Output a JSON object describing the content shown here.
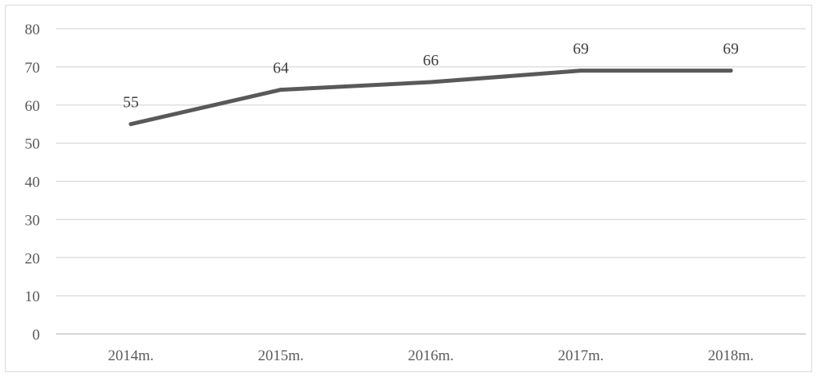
{
  "chart_data": {
    "type": "line",
    "categories": [
      "2014m.",
      "2015m.",
      "2016m.",
      "2017m.",
      "2018m."
    ],
    "series": [
      {
        "values": [
          55,
          64,
          66,
          69,
          69
        ],
        "color": "#595959"
      }
    ],
    "data_labels": [
      "55",
      "64",
      "66",
      "69",
      "69"
    ],
    "yticks": [
      0,
      10,
      20,
      30,
      40,
      50,
      60,
      70,
      80
    ],
    "ylim": [
      0,
      80
    ],
    "grid": true,
    "title": "",
    "xlabel": "",
    "ylabel": "",
    "colors": {
      "gridline": "#d9d9d9",
      "axis": "#bfbfbf",
      "tick_text": "#595959",
      "label_text": "#404040",
      "border": "#d9d9d9"
    }
  }
}
